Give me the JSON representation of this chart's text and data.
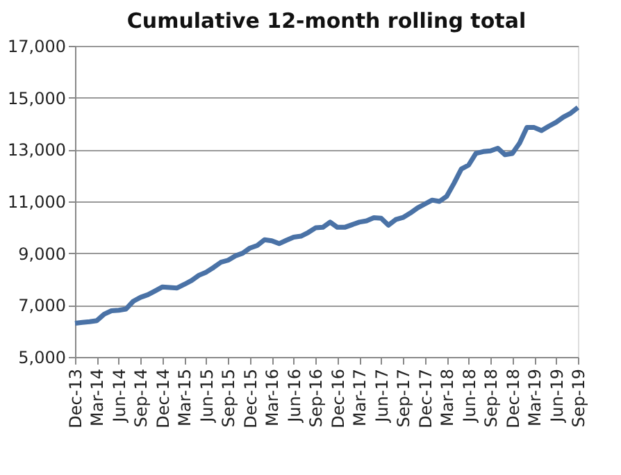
{
  "chart_data": {
    "type": "line",
    "title": "Cumulative 12-month rolling total",
    "categories": [
      "Dec-13",
      null,
      null,
      "Mar-14",
      null,
      null,
      "Jun-14",
      null,
      null,
      "Sep-14",
      null,
      null,
      "Dec-14",
      null,
      null,
      "Mar-15",
      null,
      null,
      "Jun-15",
      null,
      null,
      "Sep-15",
      null,
      null,
      "Dec-15",
      null,
      null,
      "Mar-16",
      null,
      null,
      "Jun-16",
      null,
      null,
      "Sep-16",
      null,
      null,
      "Dec-16",
      null,
      null,
      "Mar-17",
      null,
      null,
      "Jun-17",
      null,
      null,
      "Sep-17",
      null,
      null,
      "Dec-17",
      null,
      null,
      "Mar-18",
      null,
      null,
      "Jun-18",
      null,
      null,
      "Sep-18",
      null,
      null,
      "Dec-18",
      null,
      null,
      "Mar-19",
      null,
      null,
      "Jun-19",
      null,
      null,
      "Sep-19"
    ],
    "series": [
      {
        "color": "#4a72a6",
        "values": [
          6300,
          6330,
          6360,
          6400,
          6650,
          6780,
          6800,
          6850,
          7150,
          7300,
          7400,
          7550,
          7700,
          7680,
          7660,
          7800,
          7950,
          8150,
          8270,
          8450,
          8650,
          8730,
          8900,
          9000,
          9200,
          9300,
          9520,
          9480,
          9370,
          9500,
          9620,
          9660,
          9800,
          9980,
          10000,
          10200,
          10000,
          10000,
          10100,
          10200,
          10250,
          10370,
          10350,
          10080,
          10300,
          10380,
          10550,
          10750,
          10900,
          11050,
          11000,
          11200,
          11700,
          12250,
          12400,
          12850,
          12920,
          12950,
          13050,
          12800,
          12850,
          13250,
          13850,
          13850,
          13730,
          13900,
          14050,
          14250,
          14400,
          14620
        ]
      }
    ],
    "ylim": [
      5000,
      17000
    ],
    "yticks": [
      {
        "value": 5000,
        "label": "5,000"
      },
      {
        "value": 7000,
        "label": "7,000"
      },
      {
        "value": 9000,
        "label": "9,000"
      },
      {
        "value": 11000,
        "label": "11,000"
      },
      {
        "value": 13000,
        "label": "13,000"
      },
      {
        "value": 15000,
        "label": "15,000"
      },
      {
        "value": 17000,
        "label": "17,000"
      }
    ],
    "grid": "y",
    "marker": "none",
    "line_style": "solid"
  }
}
